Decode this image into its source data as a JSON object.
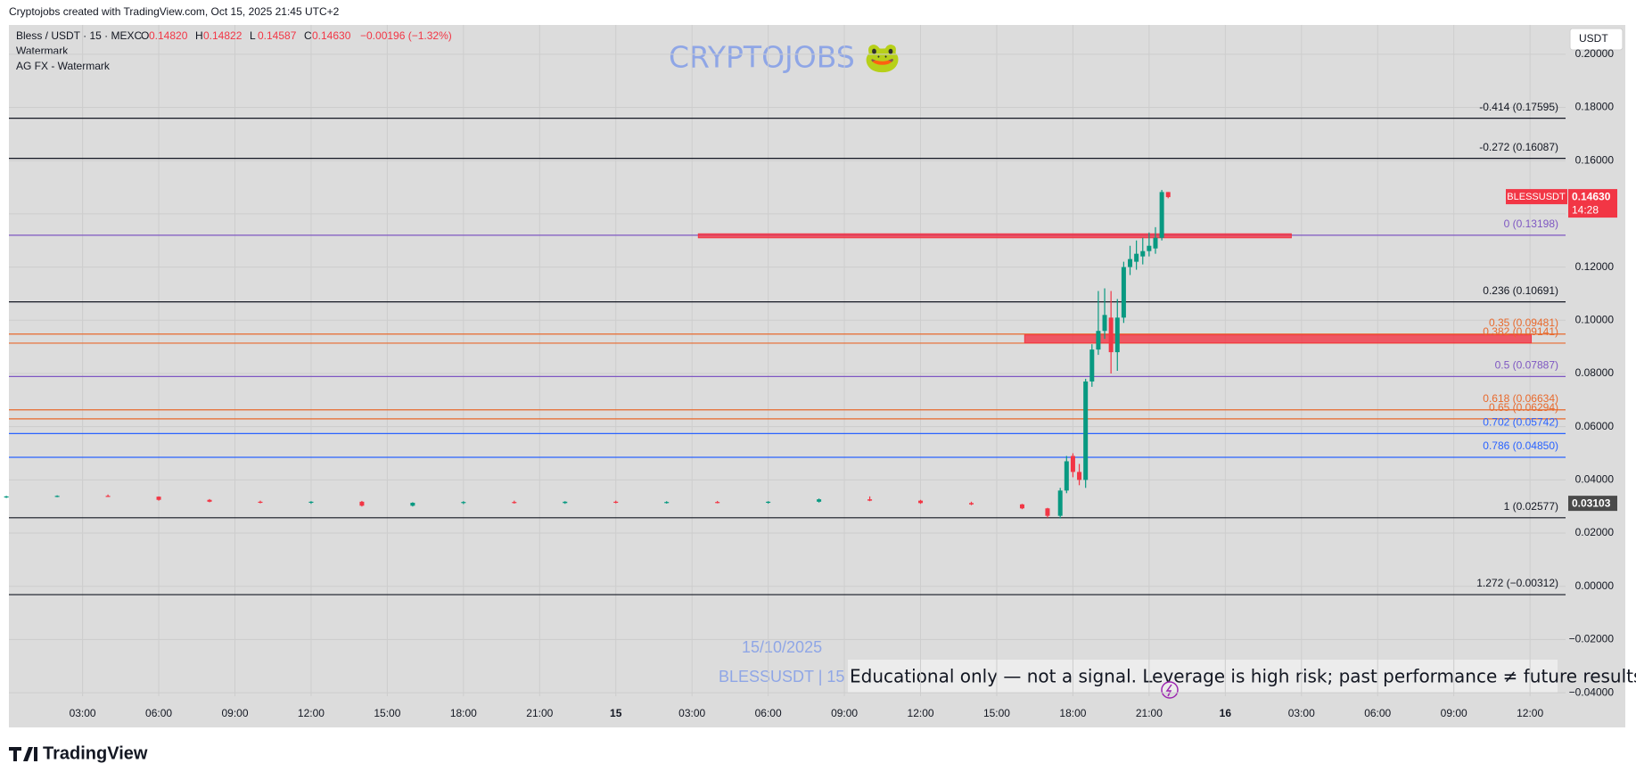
{
  "header": "Cryptojobs created with TradingView.com, Oct 15, 2025 21:45 UTC+2",
  "footer_logo": "TradingView",
  "chart_data": {
    "type": "candlestick",
    "title": "Bless / USDT · 15 · MEXC",
    "ohlc": [
      {
        "key": "O",
        "label": "0.14820"
      },
      {
        "key": "H",
        "label": "0.14822"
      },
      {
        "key": "L",
        "label": "0.14587"
      },
      {
        "key": "C",
        "label": "0.14630"
      }
    ],
    "change": "−0.00196 (−1.32%)",
    "indicators": [
      "Watermark",
      "AG FX - Watermark"
    ],
    "currency": "USDT",
    "watermark": "CRYPTOJOBS 🐸",
    "watermark_date": "15/10/2025",
    "watermark_symbol": "BLESSUSDT | 15",
    "disclaimer": "Educational only — not a signal. Leverage is high risk; past performance ≠ future results.",
    "up_color": "#089981",
    "down_color": "#f23645",
    "x": [
      0,
      2,
      4,
      6,
      8,
      10,
      12,
      14,
      16,
      18,
      20,
      22,
      24,
      26,
      28,
      30,
      32,
      34,
      36,
      38,
      40,
      41,
      41.5,
      41.75,
      42,
      42.25,
      42.5,
      42.75,
      43,
      43.25,
      43.5,
      43.75,
      44,
      44.25,
      44.5,
      44.75,
      45,
      45.25,
      45.5,
      45.75
    ],
    "open": [
      0.0335,
      0.0338,
      0.034,
      0.0337,
      0.0325,
      0.0318,
      0.0315,
      0.0318,
      0.0303,
      0.0314,
      0.0317,
      0.0313,
      0.0318,
      0.0315,
      0.0317,
      0.0314,
      0.0318,
      0.0327,
      0.0322,
      0.0313,
      0.0308,
      0.0293,
      0.0265,
      0.036,
      0.049,
      0.043,
      0.04,
      0.077,
      0.089,
      0.096,
      0.101,
      0.088,
      0.101,
      0.12,
      0.122,
      0.124,
      0.126,
      0.127,
      0.131,
      0.1482
    ],
    "high": [
      0.034,
      0.0342,
      0.0345,
      0.0338,
      0.0328,
      0.0322,
      0.032,
      0.0321,
      0.0316,
      0.032,
      0.0322,
      0.032,
      0.0322,
      0.032,
      0.0321,
      0.032,
      0.033,
      0.0338,
      0.0325,
      0.0318,
      0.031,
      0.0295,
      0.037,
      0.049,
      0.05,
      0.046,
      0.078,
      0.091,
      0.111,
      0.112,
      0.111,
      0.108,
      0.122,
      0.128,
      0.13,
      0.131,
      0.133,
      0.135,
      0.149,
      0.14822
    ],
    "low": [
      0.0332,
      0.0335,
      0.0336,
      0.0322,
      0.0316,
      0.0312,
      0.031,
      0.03,
      0.03,
      0.0309,
      0.0311,
      0.031,
      0.0312,
      0.0311,
      0.0312,
      0.0311,
      0.0315,
      0.032,
      0.031,
      0.0305,
      0.029,
      0.0258,
      0.0255,
      0.035,
      0.041,
      0.038,
      0.037,
      0.075,
      0.087,
      0.093,
      0.08,
      0.081,
      0.099,
      0.117,
      0.119,
      0.121,
      0.124,
      0.125,
      0.13,
      0.14587
    ],
    "close": [
      0.0338,
      0.034,
      0.0337,
      0.0325,
      0.0318,
      0.0315,
      0.0318,
      0.0303,
      0.0314,
      0.0317,
      0.0313,
      0.0318,
      0.0315,
      0.0317,
      0.0314,
      0.0318,
      0.0327,
      0.0322,
      0.0313,
      0.0308,
      0.0293,
      0.0265,
      0.036,
      0.047,
      0.043,
      0.04,
      0.077,
      0.089,
      0.096,
      0.102,
      0.088,
      0.101,
      0.12,
      0.123,
      0.125,
      0.126,
      0.128,
      0.131,
      0.1482,
      0.1463
    ],
    "xlim": [
      0.1,
      61.4
    ],
    "xticks": [
      {
        "value": 3,
        "label": "03:00"
      },
      {
        "value": 6,
        "label": "06:00"
      },
      {
        "value": 9,
        "label": "09:00"
      },
      {
        "value": 12,
        "label": "12:00"
      },
      {
        "value": 15,
        "label": "15:00"
      },
      {
        "value": 18,
        "label": "18:00"
      },
      {
        "value": 21,
        "label": "21:00"
      },
      {
        "value": 24,
        "label": "15"
      },
      {
        "value": 27,
        "label": "03:00"
      },
      {
        "value": 30,
        "label": "06:00"
      },
      {
        "value": 33,
        "label": "09:00"
      },
      {
        "value": 36,
        "label": "12:00"
      },
      {
        "value": 39,
        "label": "15:00"
      },
      {
        "value": 42,
        "label": "18:00"
      },
      {
        "value": 45,
        "label": "21:00"
      },
      {
        "value": 48,
        "label": "16"
      },
      {
        "value": 51,
        "label": "03:00"
      },
      {
        "value": 54,
        "label": "06:00"
      },
      {
        "value": 57,
        "label": "09:00"
      },
      {
        "value": 60,
        "label": "12:00"
      }
    ],
    "ylim": [
      -0.0413,
      0.211
    ],
    "yticks": [
      {
        "value": -0.04,
        "label": "−0.04000"
      },
      {
        "value": -0.02,
        "label": "−0.02000"
      },
      {
        "value": 0,
        "label": "0.00000"
      },
      {
        "value": 0.02,
        "label": "0.02000"
      },
      {
        "value": 0.04,
        "label": "0.04000"
      },
      {
        "value": 0.06,
        "label": "0.06000"
      },
      {
        "value": 0.08,
        "label": "0.08000"
      },
      {
        "value": 0.1,
        "label": "0.10000"
      },
      {
        "value": 0.12,
        "label": "0.12000"
      },
      {
        "value": 0.14,
        "label": "0.14000"
      },
      {
        "value": 0.16,
        "label": "0.16000"
      },
      {
        "value": 0.18,
        "label": "0.18000"
      },
      {
        "value": 0.2,
        "label": "0.20000"
      }
    ],
    "grid": true,
    "levels": [
      {
        "label": "-0.414 (0.17595)",
        "value": 0.17595,
        "color": "#131722"
      },
      {
        "label": "-0.272 (0.16087)",
        "value": 0.16087,
        "color": "#131722"
      },
      {
        "label": "0 (0.13198)",
        "value": 0.13198,
        "color": "#7e57c2"
      },
      {
        "label": "0.236 (0.10691)",
        "value": 0.10691,
        "color": "#131722"
      },
      {
        "label": "0.35 (0.09481)",
        "value": 0.09481,
        "color": "#e8692c"
      },
      {
        "label": "0.382 (0.09141)",
        "value": 0.09141,
        "color": "#e8692c"
      },
      {
        "label": "0.5 (0.07887)",
        "value": 0.07887,
        "color": "#7e57c2"
      },
      {
        "label": "0.618 (0.06634)",
        "value": 0.06634,
        "color": "#e8692c"
      },
      {
        "label": "0.65 (0.06294)",
        "value": 0.06294,
        "color": "#e8692c"
      },
      {
        "label": "0.702 (0.05742)",
        "value": 0.05742,
        "color": "#2962ff"
      },
      {
        "label": "0.786 (0.04850)",
        "value": 0.0485,
        "color": "#2962ff"
      },
      {
        "label": "1 (0.02577)",
        "value": 0.02577,
        "color": "#131722"
      },
      {
        "label": "1.272 (−0.00312)",
        "value": -0.00312,
        "color": "#131722"
      }
    ],
    "zones": [
      {
        "x": [
          27.25,
          50.6
        ],
        "y": [
          0.131,
          0.1325
        ],
        "color": "#f23645"
      },
      {
        "x": [
          40.1,
          60.05
        ],
        "y": [
          0.0915,
          0.0945
        ],
        "color": "#f23645"
      }
    ],
    "price_tags": [
      {
        "name": "BLESSUSDT",
        "value": 0.1463,
        "label": "0.14630",
        "timer": "14:28",
        "color": "#f23645"
      },
      {
        "value": 0.03103,
        "label": "0.03103",
        "color": "#4a4a4a"
      }
    ]
  }
}
